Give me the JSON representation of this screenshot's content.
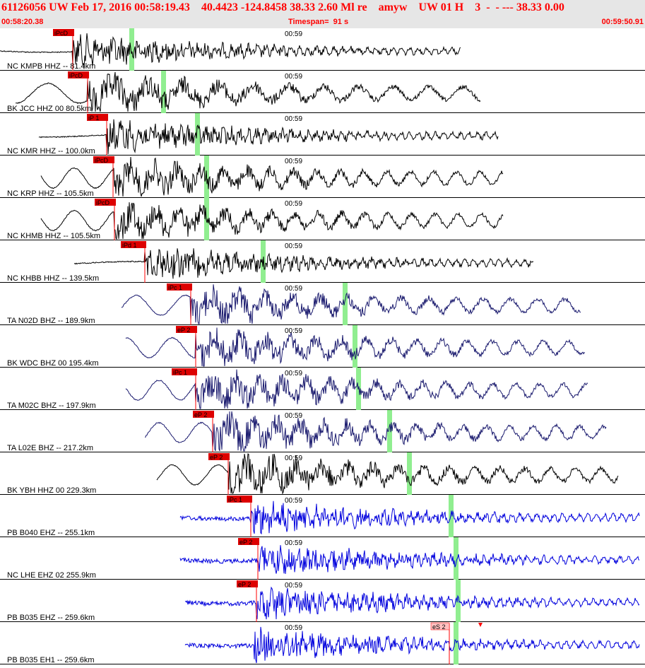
{
  "header": {
    "title": "61126056 UW Feb 17, 2016 00:58:19.43    40.4423 -124.8458 38.33 2.60 Ml re    amyw    UW 01 H    3  -  - --- 38.33 0.00",
    "time_start": "00:58:20.38",
    "timespan": "Timespan=  91 s",
    "time_end": "00:59:50.91"
  },
  "minute_tick": "00:59",
  "colors": {
    "header_bg": "#e6e6e6",
    "header_text": "#ff0000",
    "pick_box": "#dd0000",
    "pick_line": "#ff0000",
    "s_pick_box": "#ffc0c0",
    "green_marker": "#90ee90",
    "trace_black": "#000000",
    "trace_navy": "#1a1a6e",
    "trace_blue": "#0000dd"
  },
  "traces": [
    {
      "station": "NC KMPB HHZ -- 81.4km",
      "pick": "iPcD",
      "color": "black"
    },
    {
      "station": "BK JCC HHZ 00 80.5km",
      "pick": "iPcD",
      "color": "black"
    },
    {
      "station": "NC KMR HHZ -- 100.0km",
      "pick": "iP 1",
      "color": "black"
    },
    {
      "station": "NC KRP HHZ -- 105.5km",
      "pick": "iPcD",
      "color": "black"
    },
    {
      "station": "NC KHMB HHZ -- 105.5km",
      "pick": "iPcD",
      "color": "black"
    },
    {
      "station": "NC KHBB HHZ -- 139.5km",
      "pick": "iPd 1",
      "color": "black"
    },
    {
      "station": "TA N02D BHZ -- 189.9km",
      "pick": "iPc 1",
      "color": "navy"
    },
    {
      "station": "BK WDC BHZ 00 195.4km",
      "pick": "eP 2",
      "color": "navy"
    },
    {
      "station": "TA M02C BHZ -- 197.9km",
      "pick": "iPc 1",
      "color": "navy"
    },
    {
      "station": "TA L02E BHZ -- 217.2km",
      "pick": "eP 2",
      "color": "navy"
    },
    {
      "station": "BK YBH HHZ 00 229.3km",
      "pick": "eP 2",
      "color": "black"
    },
    {
      "station": "PB B040 EHZ -- 255.1km",
      "pick": "iPc 1",
      "color": "blue"
    },
    {
      "station": "NC LHE EHZ 02 255.9km",
      "pick": "eP 2",
      "color": "blue"
    },
    {
      "station": "PB B035 EHZ -- 259.6km",
      "pick": "eP 2",
      "color": "blue"
    },
    {
      "station": "PB B035 EH1 -- 259.6km",
      "pick": "",
      "s_pick": "eS 2",
      "color": "blue"
    }
  ]
}
